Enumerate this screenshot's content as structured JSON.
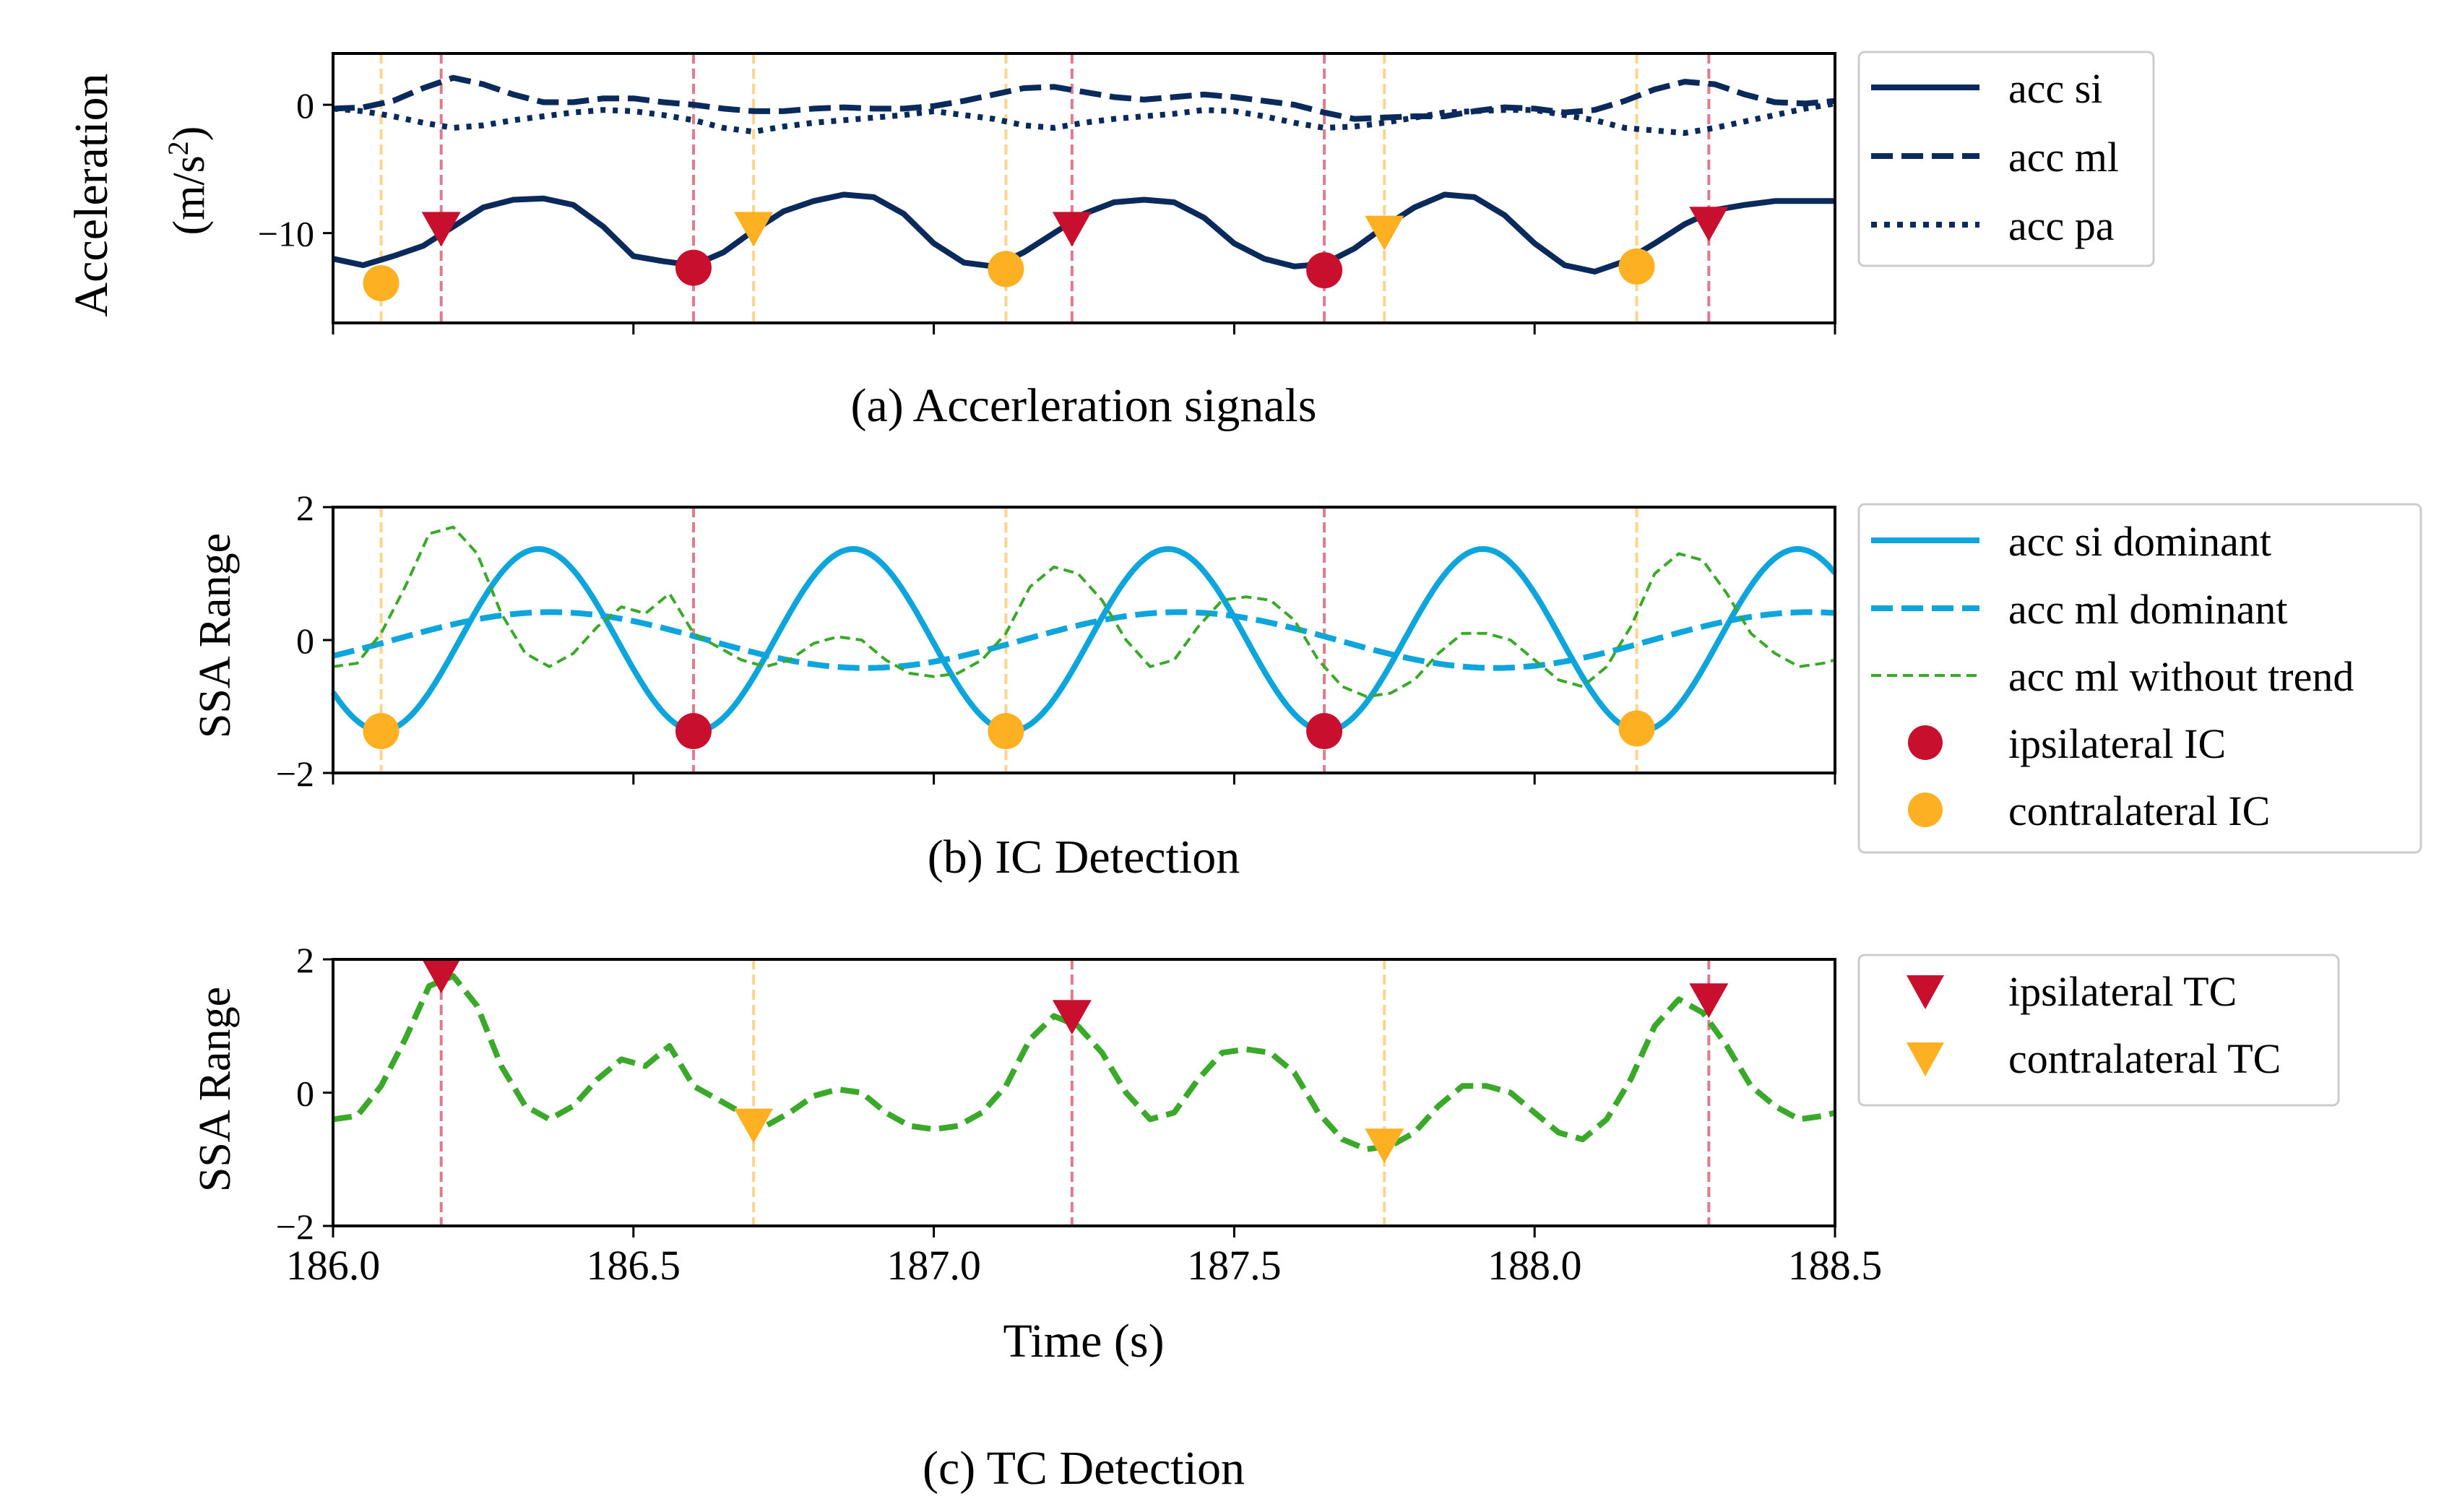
{
  "colors": {
    "navy": "#0b2a5c",
    "lightblue": "#0ea5dc",
    "green": "#3aa829",
    "ipsilateral": "#c8102e",
    "contralateral": "#fdb022",
    "ipsi_line": "#e07a8c",
    "contra_line": "#fcd58a"
  },
  "chart_data": [
    {
      "type": "line",
      "caption": "(a) Accerleration signals",
      "ylabel": "Acceleration",
      "ylabel_unit_base": "(m/s",
      "ylabel_unit_exp": "2",
      "ylabel_unit_end": ")",
      "xlim": [
        186.0,
        188.5
      ],
      "ylim": [
        -17,
        4
      ],
      "yticks": [
        "0",
        "−10"
      ],
      "ytick_values": [
        0,
        -10
      ],
      "xticks": [
        186.0,
        186.5,
        187.0,
        187.5,
        188.0,
        188.5
      ],
      "grid": false,
      "legend_position": "right",
      "series": [
        {
          "name": "acc si",
          "style": "solid",
          "x": [
            186.0,
            186.05,
            186.1,
            186.15,
            186.2,
            186.25,
            186.3,
            186.35,
            186.4,
            186.45,
            186.5,
            186.55,
            186.6,
            186.65,
            186.7,
            186.75,
            186.8,
            186.85,
            186.9,
            186.95,
            187.0,
            187.05,
            187.1,
            187.15,
            187.2,
            187.25,
            187.3,
            187.35,
            187.4,
            187.45,
            187.5,
            187.55,
            187.6,
            187.65,
            187.7,
            187.75,
            187.8,
            187.85,
            187.9,
            187.95,
            188.0,
            188.05,
            188.1,
            188.15,
            188.2,
            188.25,
            188.3,
            188.35,
            188.4,
            188.45,
            188.5
          ],
          "values": [
            -12,
            -12.5,
            -11.8,
            -11,
            -9.5,
            -8,
            -7.4,
            -7.3,
            -7.8,
            -9.5,
            -11.8,
            -12.2,
            -12.5,
            -11.5,
            -9.8,
            -8.3,
            -7.5,
            -7,
            -7.2,
            -8.5,
            -10.8,
            -12.3,
            -12.6,
            -11.5,
            -10,
            -8.5,
            -7.6,
            -7.4,
            -7.6,
            -8.8,
            -10.8,
            -12,
            -12.6,
            -12.4,
            -11.2,
            -9.5,
            -8,
            -7,
            -7.2,
            -8.6,
            -10.8,
            -12.5,
            -13,
            -12.2,
            -10.8,
            -9.3,
            -8.2,
            -7.8,
            -7.5,
            -7.5,
            -7.5
          ]
        },
        {
          "name": "acc ml",
          "style": "dashed",
          "x": [
            186.0,
            186.05,
            186.1,
            186.15,
            186.2,
            186.25,
            186.3,
            186.35,
            186.4,
            186.45,
            186.5,
            186.55,
            186.6,
            186.65,
            186.7,
            186.75,
            186.8,
            186.85,
            186.9,
            186.95,
            187.0,
            187.05,
            187.1,
            187.15,
            187.2,
            187.25,
            187.3,
            187.35,
            187.4,
            187.45,
            187.5,
            187.55,
            187.6,
            187.65,
            187.7,
            187.75,
            187.8,
            187.85,
            187.9,
            187.95,
            188.0,
            188.05,
            188.1,
            188.15,
            188.2,
            188.25,
            188.3,
            188.35,
            188.4,
            188.45,
            188.5
          ],
          "values": [
            -0.3,
            -0.2,
            0.3,
            1.3,
            2.1,
            1.6,
            0.8,
            0.2,
            0.2,
            0.5,
            0.5,
            0.2,
            0,
            -0.3,
            -0.5,
            -0.5,
            -0.3,
            -0.2,
            -0.3,
            -0.3,
            -0.1,
            0.3,
            0.8,
            1.3,
            1.4,
            1.0,
            0.6,
            0.4,
            0.6,
            0.8,
            0.6,
            0.3,
            0,
            -0.6,
            -1.1,
            -1.0,
            -0.9,
            -0.9,
            -0.5,
            -0.2,
            -0.3,
            -0.6,
            -0.4,
            0.3,
            1.2,
            1.8,
            1.6,
            0.8,
            0.2,
            0.1,
            0.3
          ]
        },
        {
          "name": "acc pa",
          "style": "dotted",
          "x": [
            186.0,
            186.05,
            186.1,
            186.15,
            186.2,
            186.25,
            186.3,
            186.35,
            186.4,
            186.45,
            186.5,
            186.55,
            186.6,
            186.65,
            186.7,
            186.75,
            186.8,
            186.85,
            186.9,
            186.95,
            187.0,
            187.05,
            187.1,
            187.15,
            187.2,
            187.25,
            187.3,
            187.35,
            187.4,
            187.45,
            187.5,
            187.55,
            187.6,
            187.65,
            187.7,
            187.75,
            187.8,
            187.85,
            187.9,
            187.95,
            188.0,
            188.05,
            188.1,
            188.15,
            188.2,
            188.25,
            188.3,
            188.35,
            188.4,
            188.45,
            188.5
          ],
          "values": [
            -0.3,
            -0.5,
            -0.9,
            -1.4,
            -1.8,
            -1.6,
            -1.2,
            -0.9,
            -0.6,
            -0.4,
            -0.5,
            -0.8,
            -1.2,
            -1.8,
            -2.1,
            -1.7,
            -1.4,
            -1.2,
            -1.0,
            -0.8,
            -0.5,
            -0.8,
            -1.1,
            -1.6,
            -1.8,
            -1.4,
            -1.1,
            -0.9,
            -0.7,
            -0.4,
            -0.5,
            -0.9,
            -1.4,
            -1.8,
            -1.7,
            -1.4,
            -1.0,
            -0.6,
            -0.5,
            -0.4,
            -0.4,
            -0.8,
            -1.2,
            -1.8,
            -2.0,
            -2.2,
            -1.8,
            -1.3,
            -0.8,
            -0.3,
            0.1
          ]
        }
      ],
      "markers": {
        "ipsilateral_IC": {
          "x": [
            186.6,
            187.65
          ],
          "y": [
            -12.7,
            -12.9
          ]
        },
        "contralateral_IC": {
          "x": [
            186.08,
            187.12,
            188.17
          ],
          "y": [
            -13.9,
            -12.8,
            -12.6
          ]
        },
        "ipsilateral_TC": {
          "x": [
            186.18,
            187.23,
            188.29
          ],
          "y": [
            -9.7,
            -9.7,
            -9.3
          ]
        },
        "contralateral_TC": {
          "x": [
            186.7,
            187.75
          ],
          "y": [
            -9.7,
            -10.0
          ]
        }
      },
      "vlines": {
        "ipsilateral": [
          186.18,
          186.6,
          187.23,
          187.65,
          188.29
        ],
        "contralateral": [
          186.08,
          186.7,
          187.12,
          187.75,
          188.17
        ]
      }
    },
    {
      "type": "line",
      "caption": "(b) IC Detection",
      "ylabel": "SSA Range",
      "xlim": [
        186.0,
        188.5
      ],
      "ylim": [
        -2,
        2
      ],
      "yticks": [
        "2",
        "0",
        "−2"
      ],
      "ytick_values": [
        2,
        0,
        -2
      ],
      "xticks": [
        186.0,
        186.5,
        187.0,
        187.5,
        188.0,
        188.5
      ],
      "grid": false,
      "legend_position": "right",
      "series": [
        {
          "name": "acc si dominant",
          "style": "solid",
          "fn": {
            "kind": "cosine",
            "amp": 1.37,
            "center": 186.08,
            "period": 0.524,
            "sign": -1
          }
        },
        {
          "name": "acc ml dominant",
          "style": "dashed",
          "fn": {
            "kind": "sine",
            "amp": 0.42,
            "center": 187.12,
            "period": 1.048,
            "phase_x0": 186.1
          }
        },
        {
          "name": "acc ml without trend",
          "style": "thin-dashed",
          "x": [
            186.0,
            186.04,
            186.08,
            186.12,
            186.16,
            186.2,
            186.24,
            186.28,
            186.32,
            186.36,
            186.4,
            186.44,
            186.48,
            186.52,
            186.56,
            186.6,
            186.64,
            186.68,
            186.72,
            186.76,
            186.8,
            186.84,
            186.88,
            186.92,
            186.96,
            187.0,
            187.04,
            187.08,
            187.12,
            187.16,
            187.2,
            187.24,
            187.28,
            187.32,
            187.36,
            187.4,
            187.44,
            187.48,
            187.52,
            187.56,
            187.6,
            187.64,
            187.68,
            187.72,
            187.76,
            187.8,
            187.84,
            187.88,
            187.92,
            187.96,
            188.0,
            188.04,
            188.08,
            188.12,
            188.16,
            188.2,
            188.24,
            188.28,
            188.32,
            188.36,
            188.4,
            188.44,
            188.48,
            188.5
          ],
          "values": [
            -0.4,
            -0.35,
            0.1,
            0.8,
            1.6,
            1.7,
            1.3,
            0.4,
            -0.2,
            -0.4,
            -0.2,
            0.2,
            0.5,
            0.4,
            0.7,
            0.1,
            -0.1,
            -0.3,
            -0.4,
            -0.3,
            -0.05,
            0.05,
            0.0,
            -0.3,
            -0.5,
            -0.55,
            -0.5,
            -0.3,
            0.1,
            0.8,
            1.1,
            1.0,
            0.6,
            0.0,
            -0.4,
            -0.3,
            0.2,
            0.6,
            0.65,
            0.6,
            0.3,
            -0.3,
            -0.7,
            -0.85,
            -0.8,
            -0.6,
            -0.2,
            0.1,
            0.1,
            0.0,
            -0.3,
            -0.6,
            -0.7,
            -0.4,
            0.2,
            1.0,
            1.3,
            1.2,
            0.7,
            0.1,
            -0.2,
            -0.4,
            -0.35,
            -0.3
          ]
        }
      ],
      "markers": {
        "ipsilateral_IC": {
          "x": [
            186.6,
            187.65
          ],
          "y": [
            -1.37,
            -1.37
          ]
        },
        "contralateral_IC": {
          "x": [
            186.08,
            187.12,
            188.17
          ],
          "y": [
            -1.37,
            -1.37,
            -1.33
          ]
        }
      },
      "vlines": {
        "ipsilateral": [
          186.6,
          187.65
        ],
        "contralateral": [
          186.08,
          187.12,
          188.17
        ]
      }
    },
    {
      "type": "line",
      "caption": "(c) TC Detection",
      "ylabel": "SSA Range",
      "xlabel": "Time (s)",
      "xlim": [
        186.0,
        188.5
      ],
      "ylim": [
        -2,
        2
      ],
      "yticks": [
        "2",
        "0",
        "−2"
      ],
      "ytick_values": [
        2,
        0,
        -2
      ],
      "xticks": [
        186.0,
        186.5,
        187.0,
        187.5,
        188.0,
        188.5
      ],
      "xtick_labels": [
        "186.0",
        "186.5",
        "187.0",
        "187.5",
        "188.0",
        "188.5"
      ],
      "grid": false,
      "legend_position": "right",
      "series": [
        {
          "name": "",
          "style": "bold-dashed",
          "x": [
            186.0,
            186.04,
            186.08,
            186.12,
            186.16,
            186.2,
            186.24,
            186.28,
            186.32,
            186.36,
            186.4,
            186.44,
            186.48,
            186.52,
            186.56,
            186.6,
            186.64,
            186.68,
            186.72,
            186.76,
            186.8,
            186.84,
            186.88,
            186.92,
            186.96,
            187.0,
            187.04,
            187.08,
            187.12,
            187.16,
            187.2,
            187.24,
            187.28,
            187.32,
            187.36,
            187.4,
            187.44,
            187.48,
            187.52,
            187.56,
            187.6,
            187.64,
            187.68,
            187.72,
            187.76,
            187.8,
            187.84,
            187.88,
            187.92,
            187.96,
            188.0,
            188.04,
            188.08,
            188.12,
            188.16,
            188.2,
            188.24,
            188.28,
            188.32,
            188.36,
            188.4,
            188.44,
            188.48,
            188.5
          ],
          "values": [
            -0.4,
            -0.35,
            0.1,
            0.8,
            1.6,
            1.75,
            1.3,
            0.4,
            -0.2,
            -0.4,
            -0.2,
            0.2,
            0.5,
            0.4,
            0.7,
            0.1,
            -0.1,
            -0.3,
            -0.5,
            -0.3,
            -0.05,
            0.05,
            0.0,
            -0.3,
            -0.5,
            -0.55,
            -0.5,
            -0.3,
            0.1,
            0.8,
            1.15,
            1.0,
            0.6,
            0.0,
            -0.4,
            -0.3,
            0.2,
            0.6,
            0.65,
            0.6,
            0.3,
            -0.3,
            -0.7,
            -0.85,
            -0.8,
            -0.6,
            -0.2,
            0.1,
            0.1,
            0.0,
            -0.3,
            -0.6,
            -0.7,
            -0.4,
            0.2,
            1.0,
            1.4,
            1.2,
            0.7,
            0.1,
            -0.2,
            -0.4,
            -0.35,
            -0.3
          ]
        }
      ],
      "markers": {
        "ipsilateral_TC": {
          "x": [
            186.18,
            187.23,
            188.29
          ],
          "y": [
            1.75,
            1.13,
            1.38
          ]
        },
        "contralateral_TC": {
          "x": [
            186.7,
            187.75
          ],
          "y": [
            -0.5,
            -0.8
          ]
        }
      },
      "vlines": {
        "ipsilateral": [
          186.18,
          187.23,
          188.29
        ],
        "contralateral": [
          186.7,
          187.75
        ]
      }
    }
  ],
  "legends": {
    "a": [
      "acc si",
      "acc ml",
      "acc pa"
    ],
    "b": [
      "acc si dominant",
      "acc ml dominant",
      "acc ml without trend",
      "ipsilateral IC",
      "contralateral IC"
    ],
    "c": [
      "ipsilateral TC",
      "contralateral TC"
    ]
  }
}
